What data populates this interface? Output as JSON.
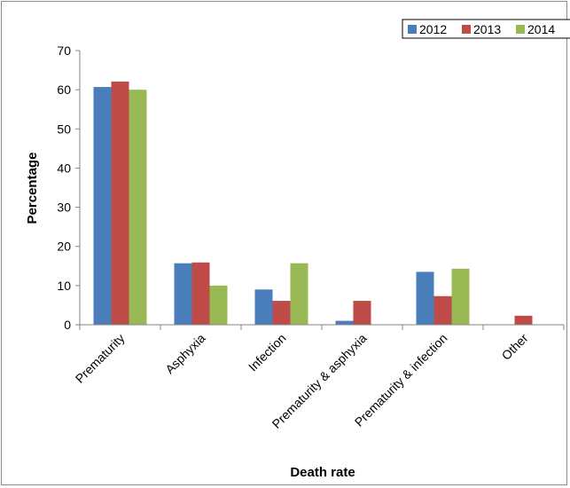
{
  "chart_data": {
    "type": "bar",
    "title": "",
    "xlabel": "Death rate",
    "ylabel": "Percentage",
    "categories": [
      "Prematurity",
      "Asphyxia",
      "Infection",
      "Prematurity & asphyxia",
      "Prematurity & infection",
      "Other"
    ],
    "series": [
      {
        "name": "2012",
        "color": "#4a7ebb",
        "values": [
          60.7,
          15.7,
          9.0,
          1.0,
          13.5,
          0
        ]
      },
      {
        "name": "2013",
        "color": "#be4b48",
        "values": [
          62.1,
          15.9,
          6.1,
          6.1,
          7.3,
          2.3
        ]
      },
      {
        "name": "2014",
        "color": "#98b954",
        "values": [
          60.0,
          10.0,
          15.7,
          0,
          14.3,
          0
        ]
      }
    ],
    "ylim": [
      0,
      70
    ],
    "yticks": [
      0,
      10,
      20,
      30,
      40,
      50,
      60,
      70
    ],
    "grid": false,
    "legend_position": "top-right"
  }
}
